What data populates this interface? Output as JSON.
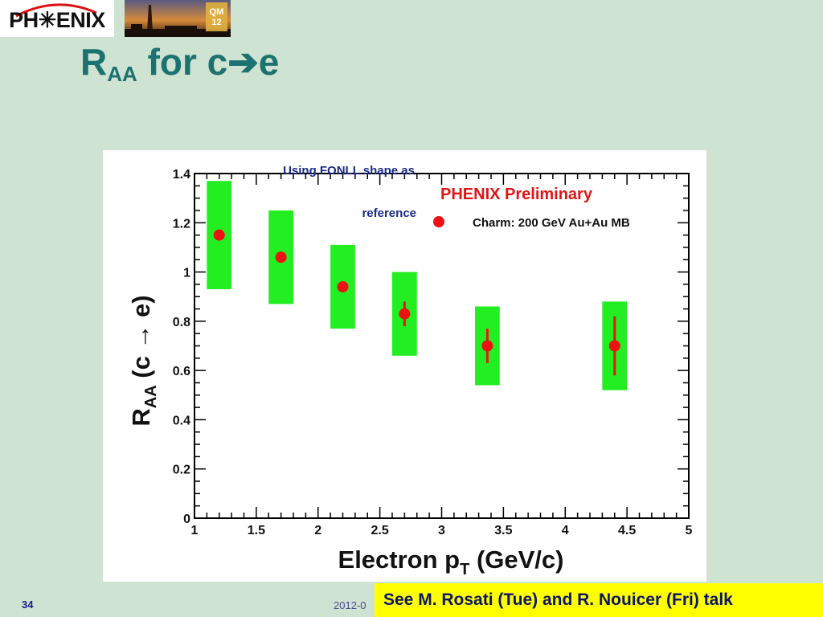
{
  "logo": {
    "text": "PH✳ENIX"
  },
  "photo": {
    "badge_line1": "QM",
    "badge_line2": "12"
  },
  "slide": {
    "title_main": "R",
    "title_sub": "AA",
    "title_rest": " for c➔e",
    "number": "34",
    "date": "2012-0"
  },
  "banner": {
    "text": "See M. Rosati (Tue) and R. Nouicer (Fri) talk"
  },
  "colors": {
    "points": "#ee1111",
    "systematics": "#22ee22",
    "title": "#1c7270"
  },
  "chart_data": {
    "type": "scatter",
    "xlabel": "Electron p",
    "xlabel_sub": "T",
    "xlabel_rest": " (GeV/c)",
    "ylabel": "R",
    "ylabel_sub": "AA",
    "ylabel_rest": " (c → e)",
    "xlim": [
      1,
      5
    ],
    "ylim": [
      0,
      1.4
    ],
    "xticks": [
      "1",
      "1.5",
      "2",
      "2.5",
      "3",
      "3.5",
      "4",
      "4.5",
      "5"
    ],
    "yticks": [
      "0",
      "0.2",
      "0.4",
      "0.6",
      "0.8",
      "1",
      "1.2",
      "1.4"
    ],
    "annotation_reference": [
      "Using FONLL shape as",
      "reference"
    ],
    "annotation_preliminary": "PHENIX Preliminary",
    "legend": "top-right",
    "series": [
      {
        "name": "Charm: 200 GeV Au+Au MB",
        "points": [
          {
            "x": 1.2,
            "y": 1.15,
            "stat_lo": 1.15,
            "stat_hi": 1.15,
            "sys_lo": 0.93,
            "sys_hi": 1.37,
            "sys_x0": 1.1,
            "sys_x1": 1.3
          },
          {
            "x": 1.7,
            "y": 1.06,
            "stat_lo": 1.06,
            "stat_hi": 1.06,
            "sys_lo": 0.87,
            "sys_hi": 1.25,
            "sys_x0": 1.6,
            "sys_x1": 1.8
          },
          {
            "x": 2.2,
            "y": 0.94,
            "stat_lo": 0.94,
            "stat_hi": 0.94,
            "sys_lo": 0.77,
            "sys_hi": 1.11,
            "sys_x0": 2.1,
            "sys_x1": 2.3
          },
          {
            "x": 2.7,
            "y": 0.83,
            "stat_lo": 0.78,
            "stat_hi": 0.88,
            "sys_lo": 0.66,
            "sys_hi": 1.0,
            "sys_x0": 2.6,
            "sys_x1": 2.8
          },
          {
            "x": 3.37,
            "y": 0.7,
            "stat_lo": 0.63,
            "stat_hi": 0.77,
            "sys_lo": 0.54,
            "sys_hi": 0.86,
            "sys_x0": 3.27,
            "sys_x1": 3.47
          },
          {
            "x": 4.4,
            "y": 0.7,
            "stat_lo": 0.58,
            "stat_hi": 0.82,
            "sys_lo": 0.52,
            "sys_hi": 0.88,
            "sys_x0": 4.3,
            "sys_x1": 4.5
          }
        ]
      }
    ]
  }
}
